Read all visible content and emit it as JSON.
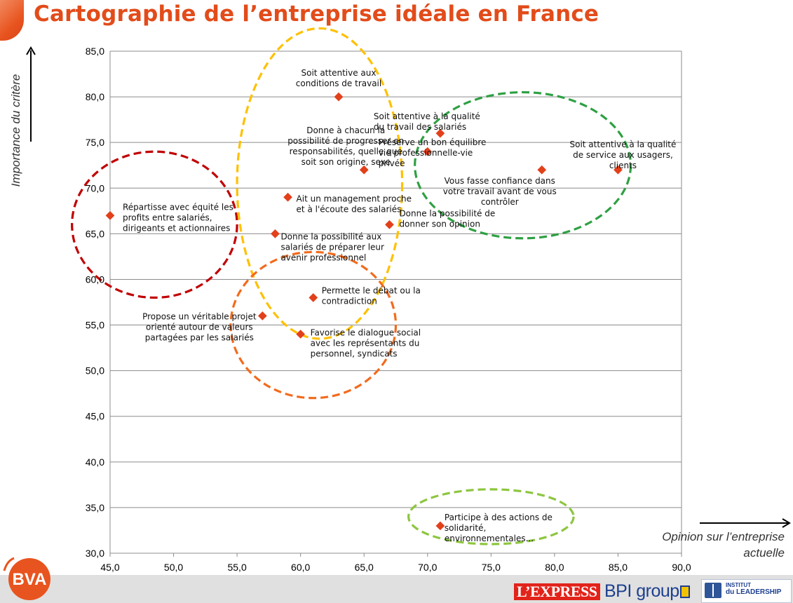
{
  "page": {
    "title": "Cartographie de l’entreprise idéale en France"
  },
  "logos": {
    "bva": "BVA",
    "express": "L’EXPRESS",
    "bpi": "BPI group",
    "leadership_line1": "INSTITUT",
    "leadership_line2": "du LEADERSHIP"
  },
  "colors": {
    "title": "#e24c1a",
    "marker": "#e2401b",
    "cluster_red": "#c00000",
    "cluster_yellow": "#ffc000",
    "cluster_green": "#2ea043",
    "cluster_orange": "#f26b1d",
    "cluster_lightgreen": "#8dc63f"
  },
  "chart_data": {
    "type": "scatter",
    "xlabel": "Opinion sur l’entreprise\nactuelle",
    "ylabel": "Importance du critère",
    "xlim": [
      45,
      90
    ],
    "ylim": [
      30,
      85
    ],
    "xticks": [
      45,
      50,
      55,
      60,
      65,
      70,
      75,
      80,
      85,
      90
    ],
    "yticks": [
      30,
      35,
      40,
      45,
      50,
      55,
      60,
      65,
      70,
      75,
      80,
      85
    ],
    "tick_decimal_separator": ",",
    "grid": "horizontal",
    "points": [
      {
        "x": 45,
        "y": 67,
        "label": "Répartisse avec équité les\nprofits entre salariés,\ndirigeants et actionnaires"
      },
      {
        "x": 63,
        "y": 80,
        "label": "Soit attentive aux\nconditions de travail"
      },
      {
        "x": 65,
        "y": 72,
        "label": "Donne à chacun la\npossibilité de progresser en\nresponsabilités, quelle que\nsoit son origine, sexe"
      },
      {
        "x": 59,
        "y": 69,
        "label": "Ait un management proche\net à l'écoute des salariés"
      },
      {
        "x": 58,
        "y": 65,
        "label": "Donne la possibilité aux\nsalariés de préparer leur\navenir professionnel"
      },
      {
        "x": 67,
        "y": 66,
        "label": "Donne la possibilité de\ndonner son opinion"
      },
      {
        "x": 70,
        "y": 74,
        "label": "Préserve un bon équilibre\nvie professionnelle-vie\nprivée"
      },
      {
        "x": 71,
        "y": 76,
        "label": "Soit attentive à la qualité\ndu travail des salariés"
      },
      {
        "x": 79,
        "y": 72,
        "label": "Vous fasse confiance dans\nvotre travail avant de vous\ncontrôler"
      },
      {
        "x": 85,
        "y": 72,
        "label": "Soit attentive à la qualité\nde service aux usagers,\nclients"
      },
      {
        "x": 61,
        "y": 58,
        "label": "Permette le débat ou la\ncontradiction"
      },
      {
        "x": 57,
        "y": 56,
        "label": "Propose un véritable projet\norienté autour de valeurs\npartagées par les salariés"
      },
      {
        "x": 60,
        "y": 54,
        "label": "Favorise le dialogue social\navec les représentants du\npersonnel, syndicats"
      },
      {
        "x": 71,
        "y": 33,
        "label": "Participe à des actions de\nsolidarité,\nenvironnementales..."
      }
    ],
    "clusters": [
      {
        "color": "#c00000",
        "cx": 48.5,
        "cy": 66,
        "rx": 6.5,
        "ry": 8
      },
      {
        "color": "#ffc000",
        "cx": 61.5,
        "cy": 70.5,
        "rx": 6.5,
        "ry": 17
      },
      {
        "color": "#2ea043",
        "cx": 77.5,
        "cy": 72.5,
        "rx": 8.5,
        "ry": 8
      },
      {
        "color": "#f26b1d",
        "cx": 61.0,
        "cy": 55.0,
        "rx": 6.5,
        "ry": 8
      },
      {
        "color": "#8dc63f",
        "cx": 75.0,
        "cy": 34.0,
        "rx": 6.5,
        "ry": 3
      }
    ]
  }
}
